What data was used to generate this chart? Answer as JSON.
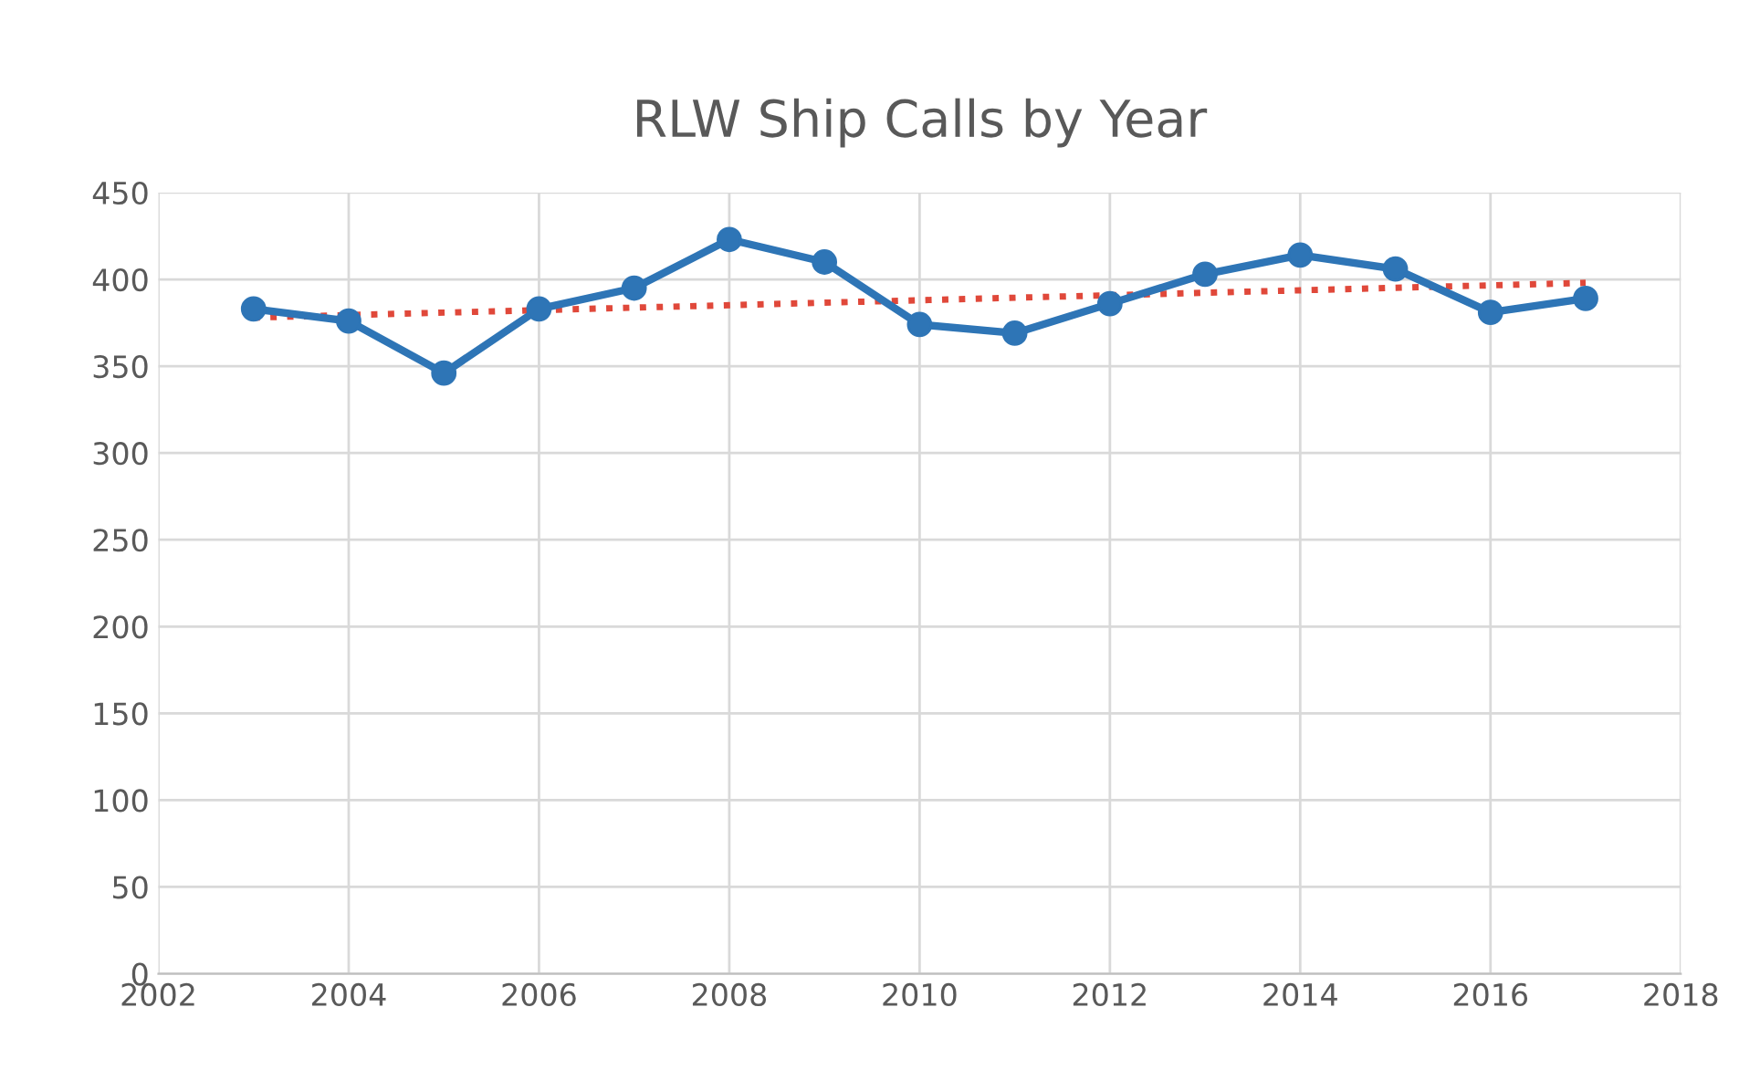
{
  "chart_data": {
    "type": "line",
    "title": "RLW Ship Calls by Year",
    "series": [
      {
        "color": "#2e75b6",
        "marker": "circle",
        "line_style": "solid",
        "x": [
          2003,
          2004,
          2005,
          2006,
          2007,
          2008,
          2009,
          2010,
          2011,
          2012,
          2013,
          2014,
          2015,
          2016,
          2017
        ],
        "values": [
          383,
          376,
          346,
          383,
          395,
          423,
          410,
          374,
          369,
          386,
          403,
          414,
          406,
          381,
          389
        ]
      },
      {
        "color": "#e0483a",
        "marker": "none",
        "line_style": "dotted",
        "x": [
          2003,
          2017
        ],
        "values": [
          378,
          398
        ]
      }
    ],
    "xlim": [
      2002,
      2018
    ],
    "xticks": [
      2002,
      2004,
      2006,
      2008,
      2010,
      2012,
      2014,
      2016,
      2018
    ],
    "ylim": [
      0,
      450
    ],
    "yticks": [
      0,
      50,
      100,
      150,
      200,
      250,
      300,
      350,
      400,
      450
    ],
    "grid": true
  }
}
